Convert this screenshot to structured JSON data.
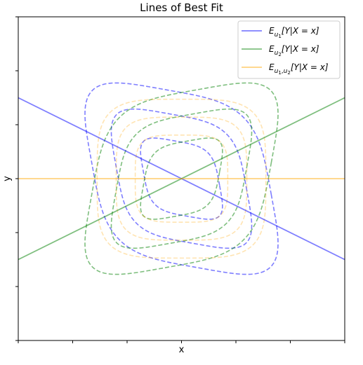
{
  "chart_data": {
    "type": "line",
    "title": "Lines of Best Fit",
    "xlabel": "x",
    "ylabel": "y",
    "xlim": [
      -3,
      3
    ],
    "ylim": [
      -3,
      3
    ],
    "grid": false,
    "legend_position": "top-right",
    "tick_labels_visible": false,
    "series": [
      {
        "name": "E_{u_1}[Y|X = x]",
        "color": "#0000ff",
        "slope": -0.5,
        "intercept": 0
      },
      {
        "name": "E_{u_2}[Y|X = x]",
        "color": "#008000",
        "slope": 0.5,
        "intercept": 0
      },
      {
        "name": "E_{u_1,u_2}[Y|X = x]",
        "color": "#ffa500",
        "slope": 0,
        "intercept": 0
      }
    ],
    "contours": [
      {
        "group": "u1",
        "color": "#0000ff",
        "orientation": -1,
        "levels": [
          0.7,
          1.2,
          1.65
        ]
      },
      {
        "group": "u2",
        "color": "#008000",
        "orientation": 1,
        "levels": [
          0.7,
          1.2,
          1.65
        ]
      },
      {
        "group": "u1u2",
        "color": "#ffa500",
        "orientation": 0,
        "levels": [
          0.85,
          1.2,
          1.55
        ]
      }
    ]
  },
  "legend": {
    "entries": [
      {
        "main": "E",
        "sub": "u",
        "sub2": "1",
        "rest": "[Y|X = x]"
      },
      {
        "main": "E",
        "sub": "u",
        "sub2": "2",
        "rest": "[Y|X = x]"
      },
      {
        "main": "E",
        "sub": "u",
        "sub2": "1",
        "sub3": "u",
        "sub4": "2",
        "rest": "[Y|X = x]"
      }
    ]
  }
}
